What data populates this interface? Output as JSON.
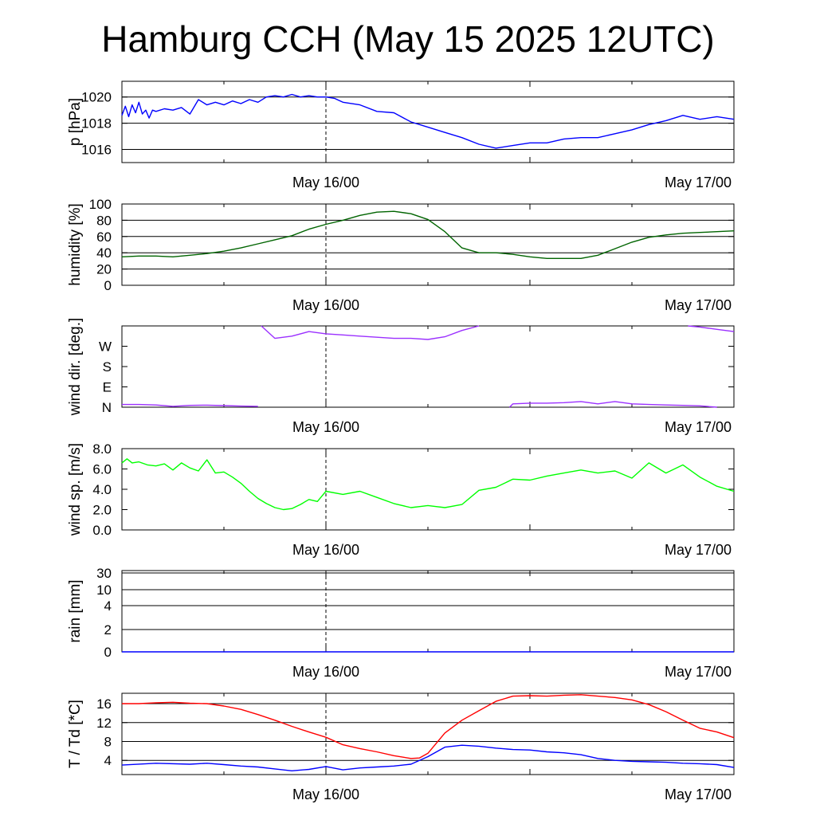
{
  "title": "Hamburg CCH (May 15 2025 12UTC)",
  "x_ticks": [
    "May 16/00",
    "May 17/00"
  ],
  "chart_data": [
    {
      "id": "pressure",
      "type": "line",
      "ylabel": "p [hPa]",
      "ylim": [
        1015,
        1021.2
      ],
      "yticks": [
        1016,
        1018,
        1020
      ],
      "yticklabels": [
        "1016",
        "1018",
        "1020"
      ],
      "grid": true,
      "x_unit": "hours since May 15 12UTC",
      "xlim": [
        0,
        36
      ],
      "series": [
        {
          "color": "#0000ff",
          "x": [
            0,
            0.2,
            0.4,
            0.6,
            0.8,
            1,
            1.2,
            1.4,
            1.6,
            1.8,
            2,
            2.5,
            3,
            3.5,
            4,
            4.5,
            5,
            5.5,
            6,
            6.5,
            7,
            7.5,
            8,
            8.5,
            9,
            9.5,
            10,
            10.5,
            11,
            11.5,
            12,
            12.5,
            13,
            14,
            15,
            16,
            17,
            18,
            19,
            20,
            21,
            22,
            23,
            24,
            25,
            26,
            27,
            28,
            29,
            30,
            31,
            32,
            33,
            34,
            35,
            36
          ],
          "values": [
            1018.6,
            1019.3,
            1018.5,
            1019.4,
            1018.8,
            1019.6,
            1018.7,
            1019.0,
            1018.4,
            1019.0,
            1018.9,
            1019.1,
            1019.0,
            1019.2,
            1018.7,
            1019.8,
            1019.4,
            1019.6,
            1019.4,
            1019.7,
            1019.5,
            1019.8,
            1019.6,
            1020.0,
            1020.1,
            1020.0,
            1020.2,
            1020.0,
            1020.1,
            1020.0,
            1020.0,
            1019.9,
            1019.6,
            1019.4,
            1018.9,
            1018.8,
            1018.1,
            1017.7,
            1017.3,
            1016.9,
            1016.4,
            1016.1,
            1016.3,
            1016.5,
            1016.5,
            1016.8,
            1016.9,
            1016.9,
            1017.2,
            1017.5,
            1017.9,
            1018.2,
            1018.6,
            1018.3,
            1018.5,
            1018.3
          ]
        }
      ]
    },
    {
      "id": "humidity",
      "type": "line",
      "ylabel": "humidity [%]",
      "ylim": [
        0,
        100
      ],
      "yticks": [
        0,
        20,
        40,
        60,
        80,
        100
      ],
      "yticklabels": [
        "0",
        "20",
        "40",
        "60",
        "80",
        "100"
      ],
      "grid": true,
      "x_unit": "hours since May 15 12UTC",
      "xlim": [
        0,
        36
      ],
      "series": [
        {
          "color": "#006400",
          "x": [
            0,
            1,
            2,
            3,
            4,
            5,
            6,
            7,
            8,
            9,
            10,
            11,
            12,
            13,
            14,
            15,
            16,
            17,
            18,
            19,
            20,
            21,
            22,
            23,
            24,
            25,
            26,
            27,
            28,
            29,
            30,
            31,
            32,
            33,
            34,
            35,
            36
          ],
          "values": [
            35,
            36,
            36,
            35,
            37,
            39,
            42,
            46,
            51,
            56,
            61,
            69,
            75,
            80,
            86,
            90,
            91,
            88,
            81,
            66,
            46,
            40,
            40,
            38,
            35,
            33,
            33,
            33,
            37,
            45,
            53,
            59,
            62,
            64,
            65,
            66,
            67
          ]
        }
      ]
    },
    {
      "id": "winddir",
      "type": "line",
      "ylabel": "wind dir. [deg.]",
      "ylim": [
        0,
        360
      ],
      "yticks": [
        0,
        90,
        180,
        270
      ],
      "yticklabels": [
        "N",
        "E",
        "S",
        "W"
      ],
      "grid": false,
      "x_unit": "hours since May 15 12UTC",
      "xlim": [
        0,
        36
      ],
      "series": [
        {
          "color": "#9b30ff",
          "x": [
            0,
            1,
            2,
            3,
            4,
            5,
            6,
            7,
            8
          ],
          "values": [
            12,
            12,
            10,
            4,
            8,
            9,
            7,
            5,
            4
          ]
        },
        {
          "color": "#9b30ff",
          "x": [
            8.2,
            9,
            10,
            11,
            12,
            13,
            14,
            15,
            16,
            17,
            18,
            19,
            20,
            21
          ],
          "values": [
            360,
            305,
            315,
            335,
            325,
            320,
            315,
            310,
            305,
            305,
            300,
            312,
            340,
            360
          ]
        },
        {
          "color": "#9b30ff",
          "x": [
            22.8,
            23,
            24,
            25,
            26,
            27,
            28,
            29,
            30,
            31,
            32,
            33,
            34,
            35
          ],
          "values": [
            0,
            15,
            18,
            18,
            20,
            25,
            15,
            25,
            15,
            12,
            10,
            8,
            6,
            0
          ]
        },
        {
          "color": "#9b30ff",
          "x": [
            33.3,
            34,
            35,
            36
          ],
          "values": [
            360,
            355,
            345,
            335
          ]
        }
      ]
    },
    {
      "id": "windspeed",
      "type": "line",
      "ylabel": "wind sp. [m/s]",
      "ylim": [
        0,
        8
      ],
      "yticks": [
        0,
        2,
        4,
        6,
        8
      ],
      "yticklabels": [
        "0.0",
        "2.0",
        "4.0",
        "6.0",
        "8.0"
      ],
      "grid": false,
      "x_unit": "hours since May 15 12UTC",
      "xlim": [
        0,
        36
      ],
      "series": [
        {
          "color": "#00ff00",
          "x": [
            0,
            0.3,
            0.6,
            1,
            1.5,
            2,
            2.5,
            3,
            3.5,
            4,
            4.5,
            5,
            5.5,
            6,
            6.5,
            7,
            7.5,
            8,
            8.5,
            9,
            9.5,
            10,
            10.5,
            11,
            11.5,
            12,
            13,
            14,
            15,
            16,
            17,
            18,
            19,
            20,
            21,
            22,
            23,
            24,
            25,
            26,
            27,
            28,
            29,
            30,
            31,
            32,
            33,
            34,
            35,
            36
          ],
          "values": [
            6.6,
            7.0,
            6.6,
            6.7,
            6.4,
            6.3,
            6.5,
            5.9,
            6.6,
            6.1,
            5.8,
            6.9,
            5.6,
            5.7,
            5.2,
            4.6,
            3.8,
            3.1,
            2.6,
            2.2,
            2.0,
            2.1,
            2.5,
            3.0,
            2.8,
            3.8,
            3.5,
            3.8,
            3.2,
            2.6,
            2.2,
            2.4,
            2.2,
            2.5,
            3.9,
            4.2,
            5.0,
            4.9,
            5.3,
            5.6,
            5.9,
            5.6,
            5.8,
            5.1,
            6.6,
            5.6,
            6.4,
            5.2,
            4.3,
            3.8
          ]
        }
      ]
    },
    {
      "id": "rain",
      "type": "line",
      "ylabel": "rain [mm]",
      "ylim": [
        0,
        30
      ],
      "yticks": [
        0,
        2,
        4,
        10,
        30
      ],
      "yticklabels": [
        "0",
        "2",
        "4",
        "10",
        "30"
      ],
      "grid": true,
      "scale": "nonlinear",
      "x_unit": "hours since May 15 12UTC",
      "xlim": [
        0,
        36
      ],
      "series": [
        {
          "color": "#0000ff",
          "x": [
            0,
            36
          ],
          "values": [
            0,
            0
          ]
        }
      ]
    },
    {
      "id": "temperature",
      "type": "line",
      "ylabel": "T / Td [*C]",
      "ylim": [
        1,
        18.2
      ],
      "yticks": [
        4,
        8,
        12,
        16
      ],
      "yticklabels": [
        "4",
        "8",
        "12",
        "16"
      ],
      "grid": true,
      "x_unit": "hours since May 15 12UTC",
      "xlim": [
        0,
        36
      ],
      "series": [
        {
          "color": "#ff0000",
          "x": [
            0,
            1,
            2,
            3,
            4,
            5,
            6,
            7,
            8,
            9,
            10,
            11,
            12,
            13,
            14,
            15,
            16,
            17,
            17.5,
            18,
            19,
            20,
            21,
            22,
            23,
            24,
            25,
            26,
            27,
            28,
            29,
            30,
            31,
            32,
            33,
            34,
            35,
            36
          ],
          "values": [
            16,
            16,
            16.2,
            16.3,
            16.1,
            16,
            15.5,
            14.8,
            13.7,
            12.5,
            11.2,
            10,
            8.9,
            7.3,
            6.5,
            5.8,
            5.0,
            4.4,
            4.5,
            5.5,
            9.8,
            12.5,
            14.5,
            16.5,
            17.6,
            17.7,
            17.6,
            17.8,
            17.9,
            17.6,
            17.3,
            16.8,
            15.8,
            14.3,
            12.5,
            10.8,
            10.0,
            8.8
          ]
        },
        {
          "color": "#0000ff",
          "x": [
            0,
            2,
            4,
            5,
            6,
            7,
            8,
            9,
            10,
            11,
            12,
            13,
            14,
            15,
            16,
            17,
            18,
            19,
            20,
            21,
            22,
            23,
            24,
            25,
            26,
            27,
            28,
            29,
            30,
            31,
            32,
            33,
            34,
            35,
            36
          ],
          "values": [
            3.0,
            3.4,
            3.2,
            3.4,
            3.1,
            2.8,
            2.6,
            2.2,
            1.8,
            2.1,
            2.7,
            2.0,
            2.4,
            2.6,
            2.8,
            3.2,
            4.8,
            6.8,
            7.2,
            7.0,
            6.6,
            6.3,
            6.2,
            5.8,
            5.6,
            5.2,
            4.4,
            4.0,
            3.8,
            3.7,
            3.6,
            3.4,
            3.3,
            3.1,
            2.5
          ]
        }
      ]
    }
  ]
}
